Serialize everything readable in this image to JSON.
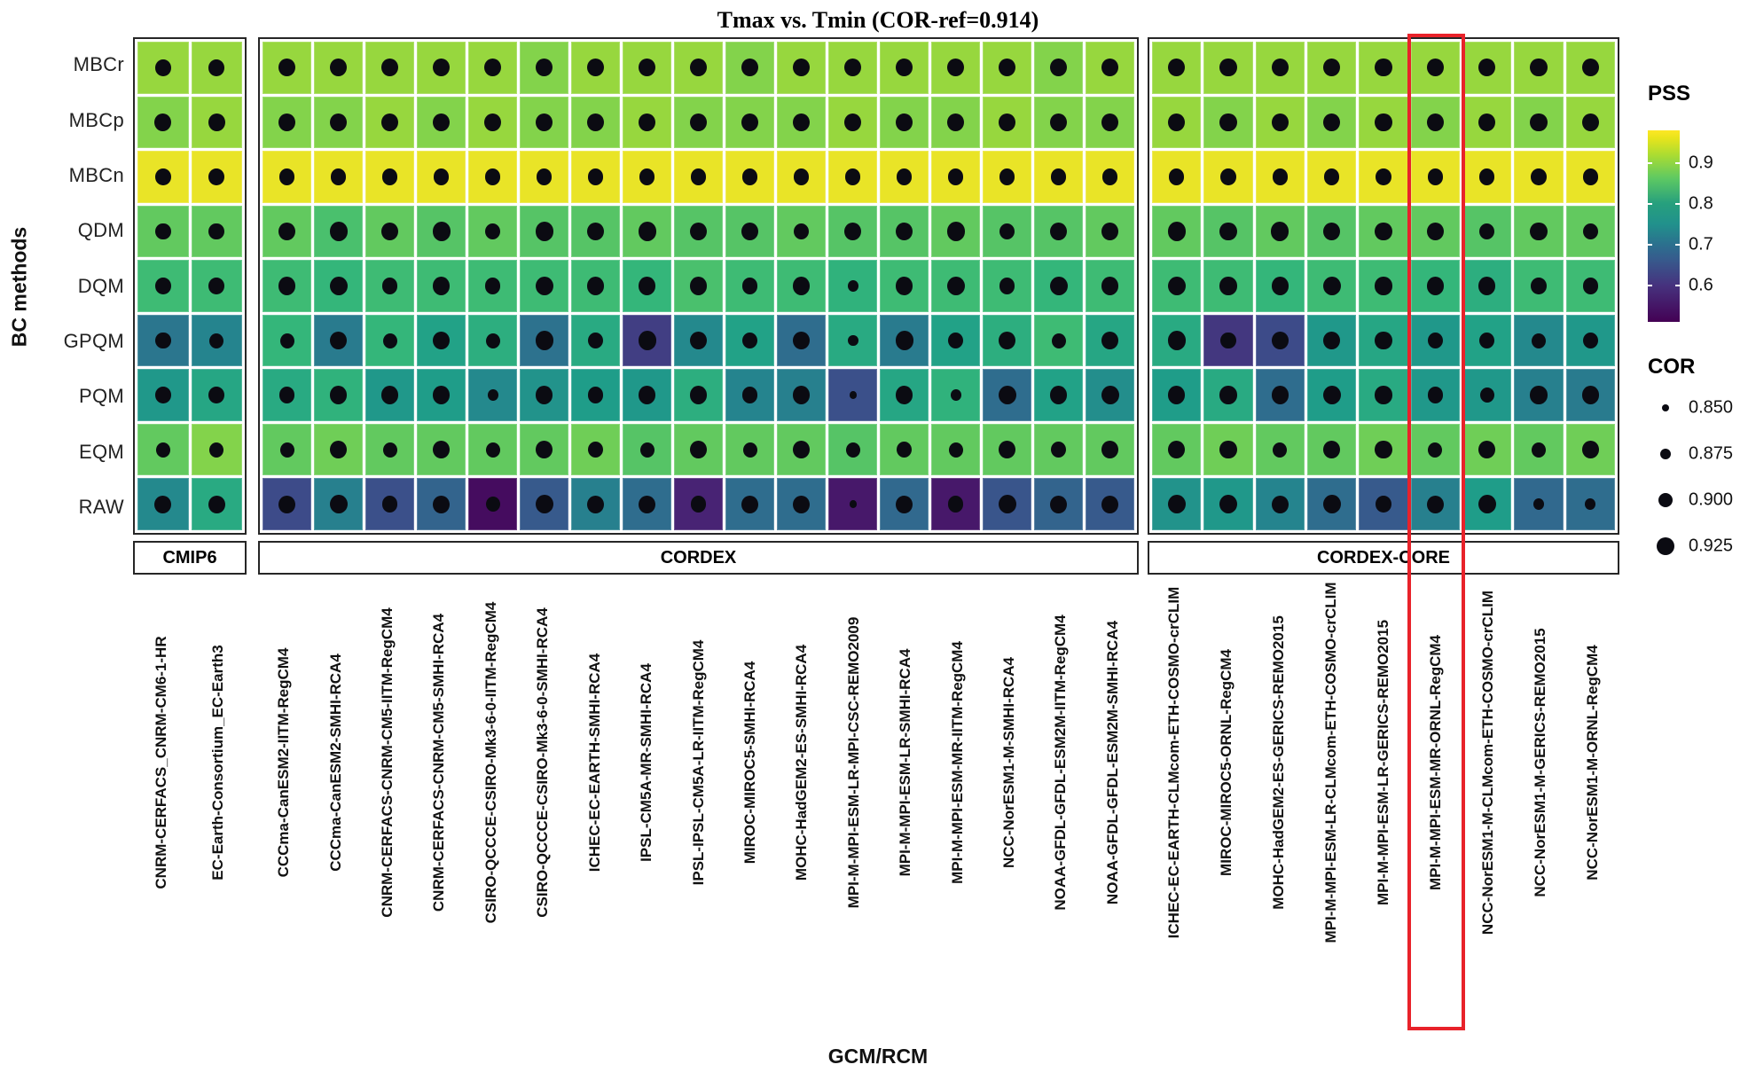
{
  "title": "Tmax vs. Tmin (COR-ref=0.914)",
  "y_axis": {
    "title": "BC methods"
  },
  "x_axis": {
    "title": "GCM/RCM"
  },
  "legend": {
    "pss_title": "PSS",
    "pss_ticks": [
      "0.9",
      "0.8",
      "0.7",
      "0.6"
    ],
    "cor_title": "COR",
    "cor_items": [
      "0.850",
      "0.875",
      "0.900",
      "0.925"
    ]
  },
  "highlight": {
    "panel": "CORDEX-CORE",
    "model": "MPI-M-MPI-ESM-MR-ORNL-RegCM4",
    "color": "#e8222a"
  },
  "chart_data": {
    "type": "heatmap",
    "title": "Tmax vs. Tmin (COR-ref=0.914)",
    "xlabel": "GCM/RCM",
    "ylabel": "BC methods",
    "rows": [
      "MBCr",
      "MBCp",
      "MBCn",
      "QDM",
      "DQM",
      "GPQM",
      "PQM",
      "EQM",
      "RAW"
    ],
    "color_scale": {
      "name": "viridis",
      "label": "PSS",
      "domain": [
        0.51,
        0.98
      ],
      "ticks": [
        0.9,
        0.8,
        0.7,
        0.6
      ]
    },
    "size_scale": {
      "label": "COR",
      "values": [
        0.85,
        0.875,
        0.9,
        0.925
      ]
    },
    "panels": [
      {
        "name": "CMIP6",
        "columns": [
          "CNRM-CERFACS_CNRM-CM6-1-HR",
          "EC-Earth-Consortium_EC-Earth3"
        ],
        "pss": [
          [
            0.93,
            0.93
          ],
          [
            0.92,
            0.93
          ],
          [
            0.97,
            0.97
          ],
          [
            0.9,
            0.9
          ],
          [
            0.87,
            0.87
          ],
          [
            0.72,
            0.75
          ],
          [
            0.79,
            0.82
          ],
          [
            0.9,
            0.92
          ],
          [
            0.76,
            0.83
          ]
        ],
        "cor": [
          [
            0.91,
            0.91
          ],
          [
            0.92,
            0.92
          ],
          [
            0.91,
            0.91
          ],
          [
            0.91,
            0.91
          ],
          [
            0.91,
            0.91
          ],
          [
            0.91,
            0.9
          ],
          [
            0.91,
            0.91
          ],
          [
            0.9,
            0.9
          ],
          [
            0.92,
            0.92
          ]
        ]
      },
      {
        "name": "CORDEX",
        "columns": [
          "CCCma-CanESM2-IITM-RegCM4",
          "CCCma-CanESM2-SMHI-RCA4",
          "CNRM-CERFACS-CNRM-CM5-IITM-RegCM4",
          "CNRM-CERFACS-CNRM-CM5-SMHI-RCA4",
          "CSIRO-QCCCE-CSIRO-Mk3-6-0-IITM-RegCM4",
          "CSIRO-QCCCE-CSIRO-Mk3-6-0-SMHI-RCA4",
          "ICHEC-EC-EARTH-SMHI-RCA4",
          "IPSL-CM5A-MR-SMHI-RCA4",
          "IPSL-IPSL-CM5A-LR-IITM-RegCM4",
          "MIROC-MIROC5-SMHI-RCA4",
          "MOHC-HadGEM2-ES-SMHI-RCA4",
          "MPI-M-MPI-ESM-LR-MPI-CSC-REMO2009",
          "MPI-M-MPI-ESM-LR-SMHI-RCA4",
          "MPI-M-MPI-ESM-MR-IITM-RegCM4",
          "NCC-NorESM1-M-SMHI-RCA4",
          "NOAA-GFDL-GFDL-ESM2M-IITM-RegCM4",
          "NOAA-GFDL-GFDL-ESM2M-SMHI-RCA4"
        ],
        "pss": [
          [
            0.93,
            0.93,
            0.93,
            0.93,
            0.93,
            0.92,
            0.93,
            0.93,
            0.93,
            0.92,
            0.93,
            0.93,
            0.93,
            0.93,
            0.93,
            0.92,
            0.93
          ],
          [
            0.92,
            0.92,
            0.93,
            0.92,
            0.93,
            0.92,
            0.92,
            0.93,
            0.92,
            0.92,
            0.92,
            0.93,
            0.92,
            0.92,
            0.93,
            0.92,
            0.92
          ],
          [
            0.97,
            0.97,
            0.97,
            0.97,
            0.97,
            0.97,
            0.97,
            0.97,
            0.97,
            0.97,
            0.97,
            0.97,
            0.97,
            0.97,
            0.97,
            0.97,
            0.97
          ],
          [
            0.9,
            0.88,
            0.9,
            0.89,
            0.9,
            0.89,
            0.89,
            0.9,
            0.89,
            0.89,
            0.9,
            0.89,
            0.89,
            0.9,
            0.89,
            0.89,
            0.9
          ],
          [
            0.87,
            0.86,
            0.87,
            0.87,
            0.87,
            0.87,
            0.87,
            0.86,
            0.88,
            0.87,
            0.87,
            0.85,
            0.87,
            0.87,
            0.87,
            0.86,
            0.87
          ],
          [
            0.86,
            0.73,
            0.86,
            0.81,
            0.84,
            0.71,
            0.83,
            0.61,
            0.76,
            0.81,
            0.7,
            0.83,
            0.73,
            0.81,
            0.84,
            0.87,
            0.82
          ],
          [
            0.83,
            0.85,
            0.79,
            0.8,
            0.76,
            0.78,
            0.8,
            0.79,
            0.84,
            0.75,
            0.74,
            0.64,
            0.82,
            0.85,
            0.7,
            0.81,
            0.77
          ],
          [
            0.9,
            0.91,
            0.9,
            0.9,
            0.9,
            0.9,
            0.91,
            0.89,
            0.9,
            0.9,
            0.9,
            0.89,
            0.9,
            0.9,
            0.9,
            0.9,
            0.9
          ],
          [
            0.63,
            0.74,
            0.64,
            0.68,
            0.53,
            0.66,
            0.74,
            0.7,
            0.57,
            0.7,
            0.7,
            0.55,
            0.69,
            0.55,
            0.65,
            0.68,
            0.66
          ]
        ],
        "cor": [
          [
            0.92,
            0.92,
            0.92,
            0.92,
            0.92,
            0.92,
            0.92,
            0.92,
            0.92,
            0.92,
            0.92,
            0.92,
            0.92,
            0.92,
            0.92,
            0.92,
            0.92
          ],
          [
            0.92,
            0.92,
            0.92,
            0.92,
            0.92,
            0.92,
            0.92,
            0.92,
            0.92,
            0.92,
            0.92,
            0.92,
            0.92,
            0.92,
            0.92,
            0.92,
            0.92
          ],
          [
            0.91,
            0.91,
            0.91,
            0.91,
            0.91,
            0.91,
            0.91,
            0.91,
            0.91,
            0.91,
            0.91,
            0.91,
            0.91,
            0.91,
            0.91,
            0.91,
            0.91
          ],
          [
            0.92,
            0.925,
            0.92,
            0.925,
            0.91,
            0.925,
            0.92,
            0.925,
            0.92,
            0.92,
            0.91,
            0.92,
            0.92,
            0.925,
            0.91,
            0.92,
            0.92
          ],
          [
            0.92,
            0.925,
            0.91,
            0.92,
            0.91,
            0.925,
            0.92,
            0.92,
            0.92,
            0.91,
            0.92,
            0.875,
            0.92,
            0.925,
            0.91,
            0.925,
            0.92
          ],
          [
            0.9,
            0.92,
            0.9,
            0.92,
            0.9,
            0.925,
            0.91,
            0.925,
            0.92,
            0.91,
            0.92,
            0.875,
            0.925,
            0.91,
            0.92,
            0.9,
            0.92
          ],
          [
            0.91,
            0.92,
            0.92,
            0.92,
            0.875,
            0.92,
            0.91,
            0.92,
            0.92,
            0.91,
            0.92,
            0.85,
            0.92,
            0.875,
            0.925,
            0.92,
            0.925
          ],
          [
            0.9,
            0.92,
            0.9,
            0.92,
            0.9,
            0.92,
            0.91,
            0.9,
            0.92,
            0.9,
            0.92,
            0.9,
            0.91,
            0.9,
            0.92,
            0.91,
            0.92
          ],
          [
            0.92,
            0.925,
            0.91,
            0.92,
            0.9,
            0.925,
            0.92,
            0.92,
            0.91,
            0.92,
            0.92,
            0.85,
            0.92,
            0.91,
            0.925,
            0.92,
            0.92
          ]
        ]
      },
      {
        "name": "CORDEX-CORE",
        "columns": [
          "ICHEC-EC-EARTH-CLMcom-ETH-COSMO-crCLIM",
          "MIROC-MIROC5-ORNL-RegCM4",
          "MOHC-HadGEM2-ES-GERICS-REMO2015",
          "MPI-M-MPI-ESM-LR-CLMcom-ETH-COSMO-crCLIM",
          "MPI-M-MPI-ESM-LR-GERICS-REMO2015",
          "MPI-M-MPI-ESM-MR-ORNL-RegCM4",
          "NCC-NorESM1-M-CLMcom-ETH-COSMO-crCLIM",
          "NCC-NorESM1-M-GERICS-REMO2015",
          "NCC-NorESM1-M-ORNL-RegCM4"
        ],
        "pss": [
          [
            0.93,
            0.93,
            0.93,
            0.93,
            0.93,
            0.93,
            0.93,
            0.93,
            0.93
          ],
          [
            0.93,
            0.92,
            0.93,
            0.92,
            0.93,
            0.92,
            0.93,
            0.92,
            0.93
          ],
          [
            0.97,
            0.97,
            0.97,
            0.97,
            0.97,
            0.97,
            0.97,
            0.97,
            0.97
          ],
          [
            0.9,
            0.89,
            0.9,
            0.89,
            0.9,
            0.9,
            0.89,
            0.9,
            0.9
          ],
          [
            0.87,
            0.87,
            0.86,
            0.87,
            0.87,
            0.86,
            0.84,
            0.87,
            0.87
          ],
          [
            0.83,
            0.6,
            0.63,
            0.79,
            0.82,
            0.79,
            0.81,
            0.76,
            0.79
          ],
          [
            0.8,
            0.83,
            0.7,
            0.8,
            0.83,
            0.79,
            0.79,
            0.74,
            0.73
          ],
          [
            0.9,
            0.91,
            0.9,
            0.9,
            0.91,
            0.9,
            0.91,
            0.9,
            0.91
          ],
          [
            0.78,
            0.79,
            0.75,
            0.7,
            0.66,
            0.74,
            0.8,
            0.69,
            0.7
          ]
        ],
        "cor": [
          [
            0.92,
            0.92,
            0.92,
            0.92,
            0.92,
            0.92,
            0.92,
            0.92,
            0.92
          ],
          [
            0.92,
            0.92,
            0.92,
            0.92,
            0.92,
            0.92,
            0.92,
            0.92,
            0.92
          ],
          [
            0.91,
            0.91,
            0.91,
            0.91,
            0.91,
            0.91,
            0.91,
            0.91,
            0.91
          ],
          [
            0.925,
            0.92,
            0.925,
            0.92,
            0.92,
            0.92,
            0.91,
            0.92,
            0.91
          ],
          [
            0.925,
            0.92,
            0.92,
            0.925,
            0.92,
            0.92,
            0.92,
            0.91,
            0.91
          ],
          [
            0.925,
            0.91,
            0.92,
            0.92,
            0.92,
            0.91,
            0.91,
            0.9,
            0.91
          ],
          [
            0.92,
            0.92,
            0.92,
            0.925,
            0.92,
            0.91,
            0.9,
            0.92,
            0.92
          ],
          [
            0.92,
            0.92,
            0.9,
            0.92,
            0.92,
            0.9,
            0.92,
            0.9,
            0.92
          ],
          [
            0.925,
            0.925,
            0.92,
            0.925,
            0.91,
            0.92,
            0.925,
            0.875,
            0.875
          ]
        ]
      }
    ]
  }
}
